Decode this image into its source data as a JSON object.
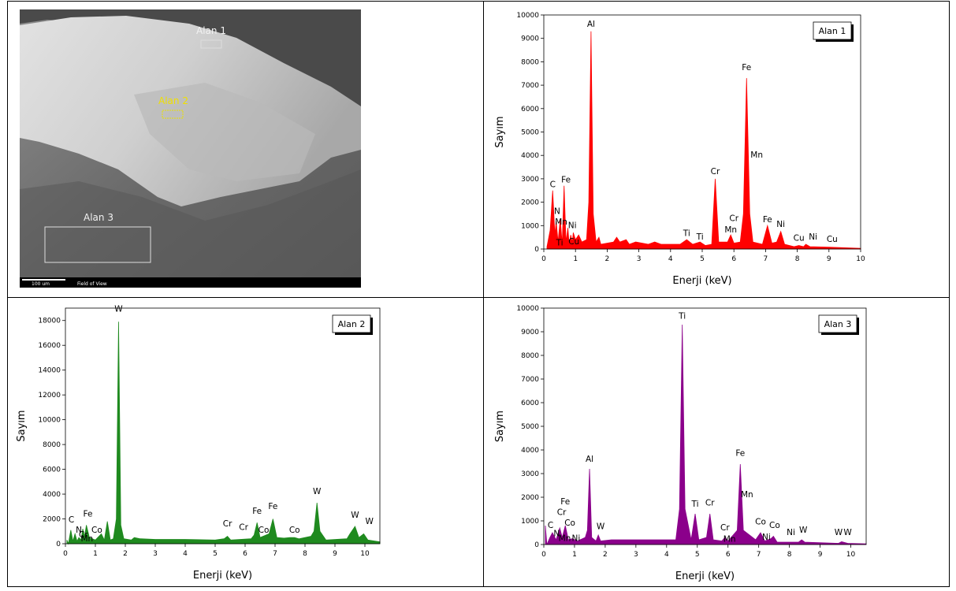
{
  "sem_image": {
    "labels": [
      "Alan 1",
      "Alan 2",
      "Alan 3"
    ],
    "scale_bar": "100 um",
    "field": "Field of View"
  },
  "chart_data": [
    {
      "type": "area",
      "xlabel": "Enerji (keV)",
      "ylabel": "Sayım",
      "xlim": [
        0,
        10
      ],
      "ylim": [
        0,
        10000
      ],
      "xticks": [
        0,
        1,
        2,
        3,
        4,
        5,
        6,
        7,
        8,
        9,
        10
      ],
      "yticks": [
        0,
        1000,
        2000,
        3000,
        4000,
        5000,
        6000,
        7000,
        8000,
        9000,
        10000
      ],
      "legend": "upper right",
      "x": [
        0.1,
        0.2,
        0.28,
        0.35,
        0.39,
        0.45,
        0.52,
        0.58,
        0.64,
        0.7,
        0.76,
        0.8,
        0.85,
        0.9,
        0.93,
        1.0,
        1.1,
        1.2,
        1.35,
        1.42,
        1.49,
        1.56,
        1.65,
        1.74,
        1.8,
        2.2,
        2.3,
        2.4,
        2.6,
        2.7,
        2.9,
        3.3,
        3.5,
        3.7,
        4.3,
        4.51,
        4.7,
        4.93,
        5.1,
        5.3,
        5.41,
        5.52,
        5.8,
        5.9,
        6.0,
        6.2,
        6.3,
        6.4,
        6.5,
        6.6,
        6.9,
        7.06,
        7.2,
        7.35,
        7.48,
        7.6,
        7.9,
        8.05,
        8.2,
        8.27,
        8.4,
        9.0,
        10
      ],
      "series": [
        {
          "name": "Alan 1",
          "color": "#ff0000",
          "values": [
            100,
            800,
            2500,
            600,
            1200,
            300,
            1300,
            200,
            2700,
            300,
            900,
            200,
            600,
            300,
            700,
            400,
            600,
            300,
            400,
            2000,
            9300,
            1500,
            300,
            500,
            200,
            300,
            500,
            300,
            400,
            200,
            300,
            200,
            300,
            200,
            200,
            400,
            200,
            300,
            150,
            200,
            3000,
            300,
            300,
            600,
            250,
            300,
            1500,
            7300,
            1500,
            300,
            200,
            1000,
            250,
            300,
            750,
            200,
            100,
            150,
            100,
            200,
            100,
            80,
            30
          ]
        }
      ],
      "annotations": [
        {
          "text": "C",
          "x": 0.28,
          "y": 2650
        },
        {
          "text": "N",
          "x": 0.42,
          "y": 1500
        },
        {
          "text": "Mn",
          "x": 0.55,
          "y": 1050
        },
        {
          "text": "Ti",
          "x": 0.5,
          "y": 150
        },
        {
          "text": "Fe",
          "x": 0.7,
          "y": 2850
        },
        {
          "text": "Ni",
          "x": 0.9,
          "y": 900
        },
        {
          "text": "Cu",
          "x": 0.95,
          "y": 200
        },
        {
          "text": "Al",
          "x": 1.49,
          "y": 9500
        },
        {
          "text": "Ti",
          "x": 4.51,
          "y": 550
        },
        {
          "text": "Ti",
          "x": 4.93,
          "y": 400
        },
        {
          "text": "Cr",
          "x": 5.41,
          "y": 3200
        },
        {
          "text": "Mn",
          "x": 5.9,
          "y": 700
        },
        {
          "text": "Cr",
          "x": 6.0,
          "y": 1200
        },
        {
          "text": "Fe",
          "x": 6.4,
          "y": 7650
        },
        {
          "text": "Mn",
          "x": 6.72,
          "y": 3900
        },
        {
          "text": "Fe",
          "x": 7.06,
          "y": 1150
        },
        {
          "text": "Ni",
          "x": 7.48,
          "y": 950
        },
        {
          "text": "Cu",
          "x": 8.05,
          "y": 350
        },
        {
          "text": "Ni",
          "x": 8.5,
          "y": 400
        },
        {
          "text": "Cu",
          "x": 9.1,
          "y": 300
        }
      ]
    },
    {
      "type": "area",
      "xlabel": "Enerji (keV)",
      "ylabel": "Sayım",
      "xlim": [
        0,
        10.5
      ],
      "ylim": [
        0,
        19000
      ],
      "xticks": [
        0,
        1,
        2,
        3,
        4,
        5,
        6,
        7,
        8,
        9,
        10
      ],
      "yticks": [
        0,
        2000,
        4000,
        6000,
        8000,
        10000,
        12000,
        14000,
        16000,
        18000
      ],
      "legend": "upper right",
      "x": [
        0.05,
        0.1,
        0.18,
        0.25,
        0.32,
        0.39,
        0.45,
        0.52,
        0.58,
        0.64,
        0.7,
        0.8,
        0.9,
        1.0,
        1.2,
        1.3,
        1.4,
        1.5,
        1.6,
        1.7,
        1.775,
        1.85,
        1.95,
        2.2,
        2.3,
        2.5,
        3,
        4,
        5,
        5.3,
        5.41,
        5.52,
        6.2,
        6.3,
        6.4,
        6.5,
        6.7,
        6.8,
        6.93,
        7.06,
        7.3,
        7.5,
        7.65,
        7.8,
        8.2,
        8.3,
        8.4,
        8.5,
        8.7,
        9.4,
        9.5,
        9.67,
        9.8,
        9.96,
        10.1,
        10.5
      ],
      "series": [
        {
          "name": "Alan 2",
          "color": "#1f8a1f",
          "values": [
            300,
            0,
            1100,
            200,
            800,
            200,
            500,
            300,
            1200,
            600,
            1500,
            500,
            400,
            300,
            800,
            300,
            1800,
            300,
            400,
            2000,
            17900,
            1500,
            400,
            300,
            500,
            400,
            350,
            350,
            300,
            400,
            600,
            300,
            400,
            700,
            1700,
            500,
            700,
            800,
            2000,
            500,
            450,
            500,
            500,
            400,
            600,
            1000,
            3300,
            1000,
            300,
            400,
            800,
            1400,
            500,
            800,
            300,
            150
          ]
        }
      ],
      "annotations": [
        {
          "text": "C",
          "x": 0.2,
          "y": 1700
        },
        {
          "text": "N",
          "x": 0.45,
          "y": 900
        },
        {
          "text": "Cr",
          "x": 0.6,
          "y": 500
        },
        {
          "text": "Mn",
          "x": 0.72,
          "y": 200
        },
        {
          "text": "Fe",
          "x": 0.75,
          "y": 2200
        },
        {
          "text": "Co",
          "x": 1.05,
          "y": 900
        },
        {
          "text": "W",
          "x": 1.775,
          "y": 18700
        },
        {
          "text": "Cr",
          "x": 5.41,
          "y": 1400
        },
        {
          "text": "Cr",
          "x": 5.95,
          "y": 1100
        },
        {
          "text": "Fe",
          "x": 6.4,
          "y": 2400
        },
        {
          "text": "Co",
          "x": 6.62,
          "y": 900
        },
        {
          "text": "Fe",
          "x": 6.93,
          "y": 2800
        },
        {
          "text": "Co",
          "x": 7.65,
          "y": 900
        },
        {
          "text": "W",
          "x": 8.4,
          "y": 4000
        },
        {
          "text": "W",
          "x": 9.67,
          "y": 2100
        },
        {
          "text": "W",
          "x": 10.15,
          "y": 1600
        }
      ]
    },
    {
      "type": "area",
      "xlabel": "Enerji (keV)",
      "ylabel": "Sayım",
      "xlim": [
        0,
        10.5
      ],
      "ylim": [
        0,
        10000
      ],
      "xticks": [
        0,
        1,
        2,
        3,
        4,
        5,
        6,
        7,
        8,
        9,
        10
      ],
      "yticks": [
        0,
        1000,
        2000,
        3000,
        4000,
        5000,
        6000,
        7000,
        8000,
        9000,
        10000
      ],
      "legend": "upper right",
      "x": [
        0.05,
        0.1,
        0.2,
        0.28,
        0.4,
        0.52,
        0.6,
        0.7,
        0.8,
        0.93,
        1.1,
        1.35,
        1.42,
        1.49,
        1.56,
        1.7,
        1.775,
        1.85,
        2.2,
        2.8,
        3.5,
        4.3,
        4.42,
        4.51,
        4.6,
        4.8,
        4.93,
        5.05,
        5.3,
        5.41,
        5.52,
        5.8,
        5.9,
        6.0,
        6.3,
        6.4,
        6.5,
        6.9,
        7.06,
        7.2,
        7.4,
        7.48,
        7.6,
        8.3,
        8.4,
        8.5,
        9.6,
        9.7,
        9.9,
        10.5
      ],
      "series": [
        {
          "name": "Alan 3",
          "color": "#8b008b",
          "values": [
            800,
            0,
            300,
            500,
            200,
            700,
            300,
            800,
            200,
            250,
            150,
            300,
            600,
            3200,
            300,
            150,
            400,
            150,
            200,
            200,
            200,
            200,
            1500,
            9300,
            1500,
            200,
            1300,
            200,
            300,
            1300,
            200,
            150,
            300,
            150,
            600,
            3400,
            600,
            200,
            500,
            150,
            250,
            350,
            100,
            100,
            200,
            100,
            50,
            120,
            50,
            30
          ]
        }
      ],
      "annotations": [
        {
          "text": "C",
          "x": 0.22,
          "y": 700
        },
        {
          "text": "N",
          "x": 0.42,
          "y": 350
        },
        {
          "text": "Cr",
          "x": 0.58,
          "y": 1250
        },
        {
          "text": "Mn",
          "x": 0.68,
          "y": 150
        },
        {
          "text": "Fe",
          "x": 0.7,
          "y": 1700
        },
        {
          "text": "Co",
          "x": 0.85,
          "y": 800
        },
        {
          "text": "Ni",
          "x": 1.05,
          "y": 150
        },
        {
          "text": "Al",
          "x": 1.49,
          "y": 3500
        },
        {
          "text": "W",
          "x": 1.85,
          "y": 650
        },
        {
          "text": "Ti",
          "x": 4.51,
          "y": 9550
        },
        {
          "text": "Ti",
          "x": 4.93,
          "y": 1600
        },
        {
          "text": "Cr",
          "x": 5.41,
          "y": 1650
        },
        {
          "text": "Cr",
          "x": 5.9,
          "y": 600
        },
        {
          "text": "Mn",
          "x": 6.05,
          "y": 120
        },
        {
          "text": "Fe",
          "x": 6.4,
          "y": 3750
        },
        {
          "text": "Mn",
          "x": 6.62,
          "y": 2000
        },
        {
          "text": "Co",
          "x": 7.06,
          "y": 850
        },
        {
          "text": "Ni",
          "x": 7.25,
          "y": 200
        },
        {
          "text": "Co",
          "x": 7.52,
          "y": 700
        },
        {
          "text": "Ni",
          "x": 8.05,
          "y": 400
        },
        {
          "text": "W",
          "x": 8.45,
          "y": 500
        },
        {
          "text": "W",
          "x": 9.6,
          "y": 400
        },
        {
          "text": "W",
          "x": 9.9,
          "y": 400
        }
      ]
    }
  ]
}
